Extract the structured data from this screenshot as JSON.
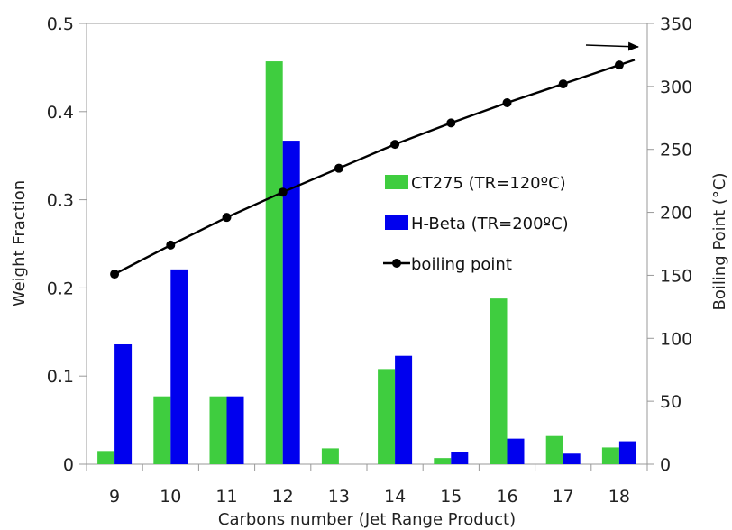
{
  "chart_data": {
    "type": "bar",
    "categories": [
      "9",
      "10",
      "11",
      "12",
      "13",
      "14",
      "15",
      "16",
      "17",
      "18"
    ],
    "series": [
      {
        "name": "CT275 (TR=120ºC)",
        "type": "bar",
        "axis": "left",
        "color": "#3fcd3f",
        "values": [
          0.015,
          0.077,
          0.077,
          0.457,
          0.018,
          0.108,
          0.007,
          0.188,
          0.032,
          0.019
        ]
      },
      {
        "name": "H-Beta (TR=200ºC)",
        "type": "bar",
        "axis": "left",
        "color": "#0000ee",
        "values": [
          0.136,
          0.221,
          0.077,
          0.367,
          0,
          0.123,
          0.014,
          0.029,
          0.012,
          0.026
        ]
      },
      {
        "name": "boiling point",
        "type": "line",
        "axis": "right",
        "color": "#000000",
        "values": [
          151,
          174,
          196,
          216,
          235,
          254,
          271,
          287,
          302,
          317
        ]
      }
    ],
    "xlabel": "Carbons number (Jet Range Product)",
    "ylabel": "Weight Fraction",
    "y2label": "Boiling Point (°C)",
    "ylim": [
      0,
      0.5
    ],
    "y2lim": [
      0,
      350
    ],
    "yticks": [
      "0",
      "0.1",
      "0.2",
      "0.3",
      "0.4",
      "0.5"
    ],
    "y2ticks": [
      "0",
      "50",
      "100",
      "150",
      "200",
      "250",
      "300",
      "350"
    ],
    "legend_position": "right-middle",
    "grid": false
  }
}
